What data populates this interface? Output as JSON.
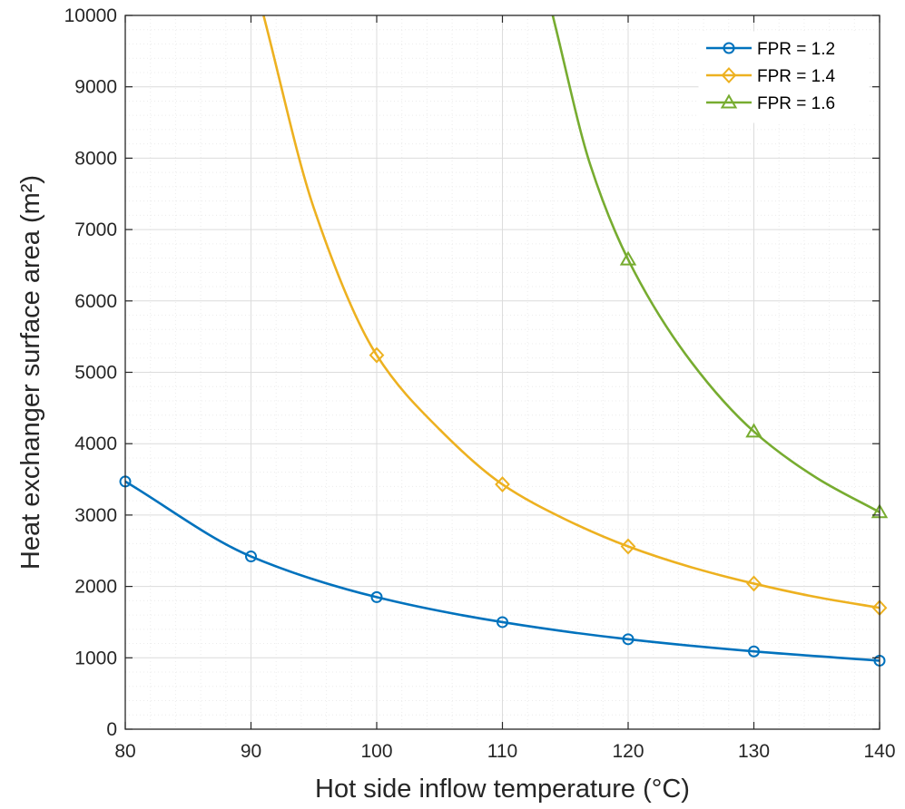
{
  "chart_data": {
    "type": "line",
    "title": "",
    "xlabel": "Hot side inflow temperature (°C)",
    "ylabel": "Heat exchanger surface area (m²)",
    "xlim": [
      80,
      140
    ],
    "ylim": [
      0,
      10000
    ],
    "xticks": [
      80,
      90,
      100,
      110,
      120,
      130,
      140
    ],
    "yticks": [
      0,
      1000,
      2000,
      3000,
      4000,
      5000,
      6000,
      7000,
      8000,
      9000,
      10000
    ],
    "grid": true,
    "minor_grid": true,
    "legend_position": "top-right",
    "series": [
      {
        "name": "FPR = 1.2",
        "color": "#0072BD",
        "marker": "circle",
        "x": [
          80,
          90,
          100,
          110,
          120,
          130,
          140
        ],
        "y": [
          3470,
          2420,
          1850,
          1500,
          1260,
          1090,
          960
        ]
      },
      {
        "name": "FPR = 1.4",
        "color": "#EDB120",
        "marker": "diamond",
        "x": [
          91,
          95,
          100,
          105,
          110,
          115,
          120,
          125,
          130,
          135,
          140
        ],
        "y": [
          10000,
          7300,
          5240,
          4200,
          3430,
          2940,
          2560,
          2270,
          2040,
          1850,
          1700
        ]
      },
      {
        "name": "FPR = 1.6",
        "color": "#77AC30",
        "marker": "triangle",
        "x": [
          114,
          117,
          120,
          125,
          130,
          135,
          140
        ],
        "y": [
          10000,
          7900,
          6580,
          5150,
          4170,
          3520,
          3040
        ]
      }
    ]
  }
}
